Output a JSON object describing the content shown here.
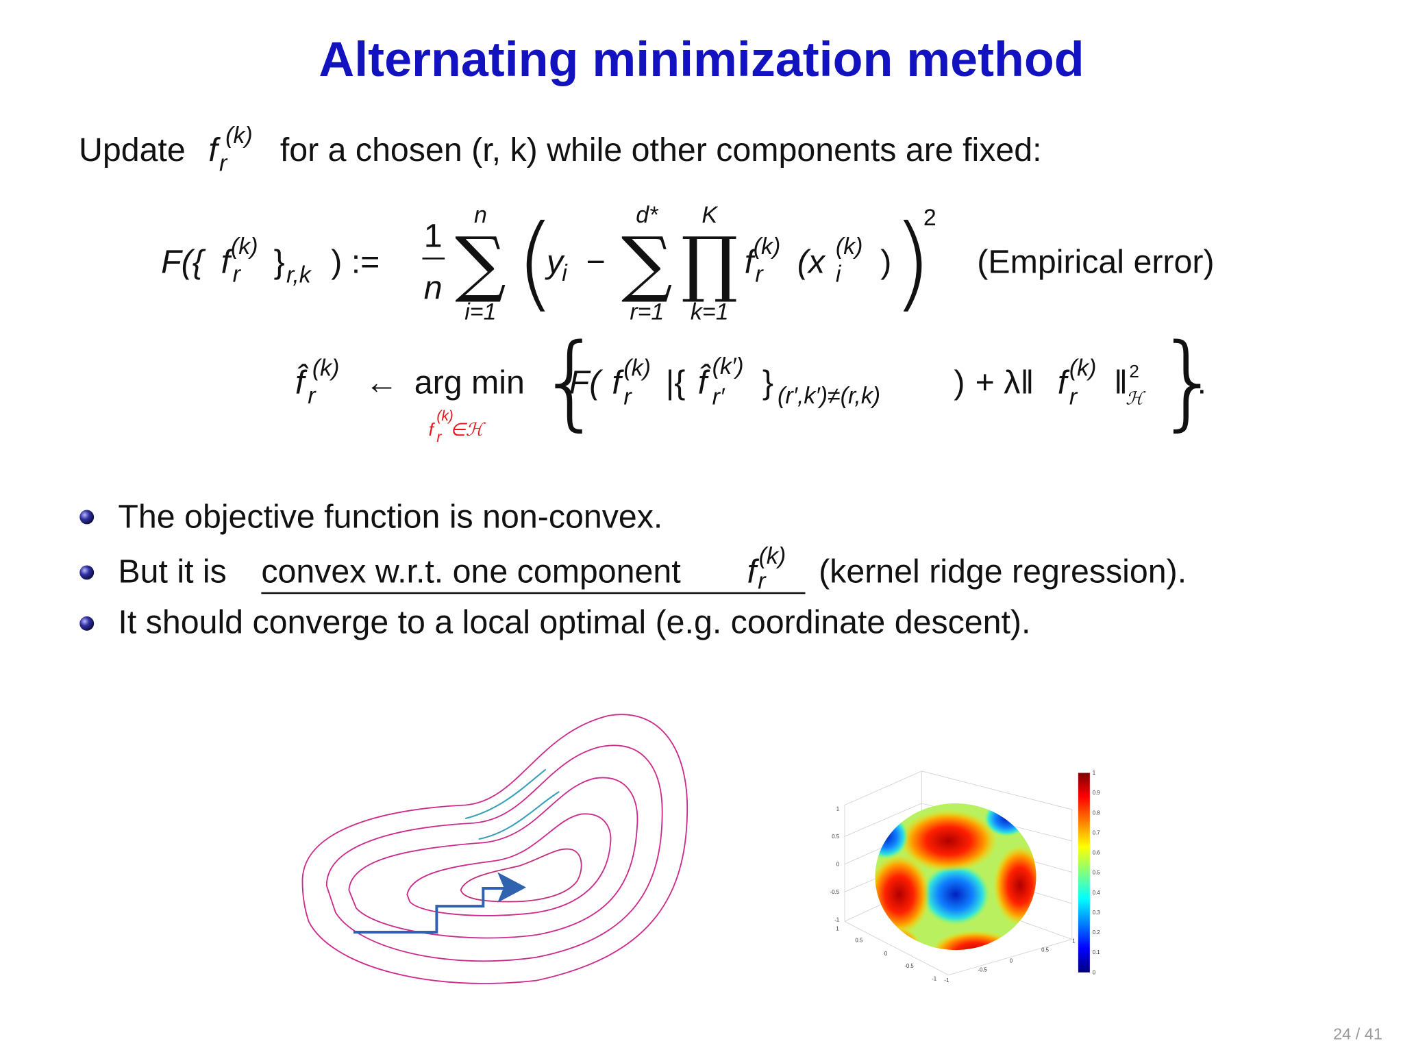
{
  "title": "Alternating minimization method",
  "intro": {
    "before": "Update",
    "f": "f",
    "sub": "r",
    "sup": "(k)",
    "after": "for a chosen (r, k) while other components are fixed:"
  },
  "equation1": {
    "lhs": "F({",
    "f": "f",
    "f_sup": "(k)",
    "f_sub": "r",
    "brace_close": "}",
    "brace_sub": "r,k",
    "assign": ") :=",
    "frac_num": "1",
    "frac_den": "n",
    "sum1": {
      "symbol": "∑",
      "upper": "n",
      "lower": "i=1"
    },
    "paren_open": "(",
    "y": "y",
    "y_sub": "i",
    "minus": "−",
    "sum2": {
      "symbol": "∑",
      "upper": "d*",
      "lower": "r=1"
    },
    "prod": {
      "symbol": "∏",
      "upper": "K",
      "lower": "k=1"
    },
    "f2": "f",
    "f2_sup": "(k)",
    "f2_sub": "r",
    "x_open": "(x",
    "x_sub": "i",
    "x_sup": "(k)",
    "x_close": ")",
    "paren_close": ")",
    "power": "2",
    "note": "(Empirical error)"
  },
  "equation2": {
    "fhat": "f̂",
    "fhat_sup": "(k)",
    "fhat_sub": "r",
    "arrow": "←",
    "argmin": "arg min",
    "under_f": "f",
    "under_sup": "(k)",
    "under_sub": "r",
    "under_in": "∈ℋ",
    "brace_open": "{",
    "F": "F(",
    "f": "f",
    "f_sup": "(k)",
    "f_sub": "r",
    "bar": "|{",
    "fhat2": "f̂",
    "fhat2_sup": "(k′)",
    "fhat2_sub": "r′",
    "inner_close": "}",
    "inner_sub": "(r′,k′)≠(r,k)",
    "close": ")",
    "plus": "+ λ‖",
    "f3": "f",
    "f3_sup": "(k)",
    "f3_sub": "r",
    "norm": "‖",
    "norm_sup": "2",
    "norm_sub": "ℋ",
    "brace_close": "}",
    "period": "."
  },
  "bullets": [
    {
      "text": "The objective function is non-convex."
    },
    {
      "before": "But it is",
      "underlined": "convex w.r.t. one component",
      "f": "f",
      "sup": "(k)",
      "sub": "r",
      "after": "(kernel ridge regression)."
    },
    {
      "text": "It should converge to a local optimal (e.g. coordinate descent)."
    }
  ],
  "figure2": {
    "colorbar_ticks": [
      "0",
      "0.1",
      "0.2",
      "0.3",
      "0.4",
      "0.5",
      "0.6",
      "0.7",
      "0.8",
      "0.9",
      "1"
    ],
    "z_ticks": [
      "1",
      "0.5",
      "0",
      "-0.5",
      "-1"
    ],
    "x_ticks": [
      "1",
      "0.5",
      "0",
      "-0.5",
      "-1"
    ],
    "y_ticks": [
      "-1",
      "-0.5",
      "0",
      "0.5",
      "1"
    ]
  },
  "page_number": "24 / 41"
}
